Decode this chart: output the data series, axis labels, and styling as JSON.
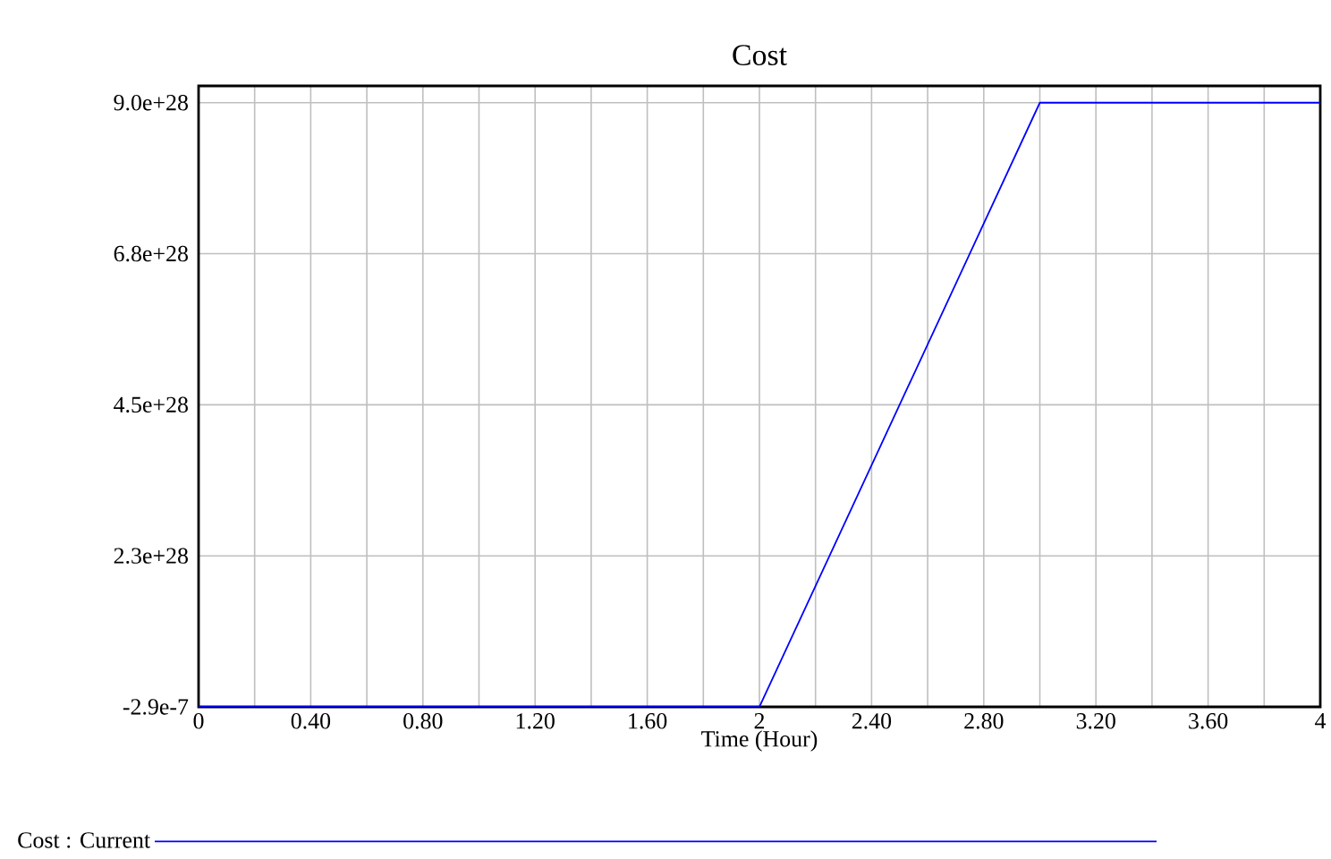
{
  "chart_data": {
    "type": "line",
    "title": "Cost",
    "xlabel": "Time (Hour)",
    "x": [
      0,
      2,
      3,
      4
    ],
    "series": [
      {
        "name": "Cost : Current",
        "color": "#0000ff",
        "values": [
          0,
          0,
          9e+28,
          9e+28
        ]
      }
    ],
    "xlim": [
      0,
      4
    ],
    "xticks": [
      0,
      {
        "value": 0.2,
        "label": null
      },
      {
        "value": 0.4,
        "label": "0.40"
      },
      {
        "value": 0.6,
        "label": null
      },
      {
        "value": 0.8,
        "label": "0.80"
      },
      {
        "value": 1.0,
        "label": null
      },
      {
        "value": 1.2,
        "label": "1.20"
      },
      {
        "value": 1.4,
        "label": null
      },
      {
        "value": 1.6,
        "label": "1.60"
      },
      {
        "value": 1.8,
        "label": null
      },
      2,
      {
        "value": 2.2,
        "label": null
      },
      {
        "value": 2.4,
        "label": "2.40"
      },
      {
        "value": 2.6,
        "label": null
      },
      {
        "value": 2.8,
        "label": "2.80"
      },
      {
        "value": 3.0,
        "label": null
      },
      {
        "value": 3.2,
        "label": "3.20"
      },
      {
        "value": 3.4,
        "label": null
      },
      {
        "value": 3.6,
        "label": "3.60"
      },
      {
        "value": 3.8,
        "label": null
      },
      4
    ],
    "ylim": [
      -2.9e-07,
      9.25e+28
    ],
    "yticks": [
      {
        "value": -2.9e-07,
        "label": "-2.9e-7"
      },
      {
        "value": 2.25e+28,
        "label": "2.3e+28"
      },
      {
        "value": 4.5e+28,
        "label": "4.5e+28"
      },
      {
        "value": 6.75e+28,
        "label": "6.8e+28"
      },
      {
        "value": 9e+28,
        "label": "9.0e+28"
      }
    ],
    "grid": true,
    "legend": "bottom",
    "marker": "none",
    "line_style": "solid"
  }
}
